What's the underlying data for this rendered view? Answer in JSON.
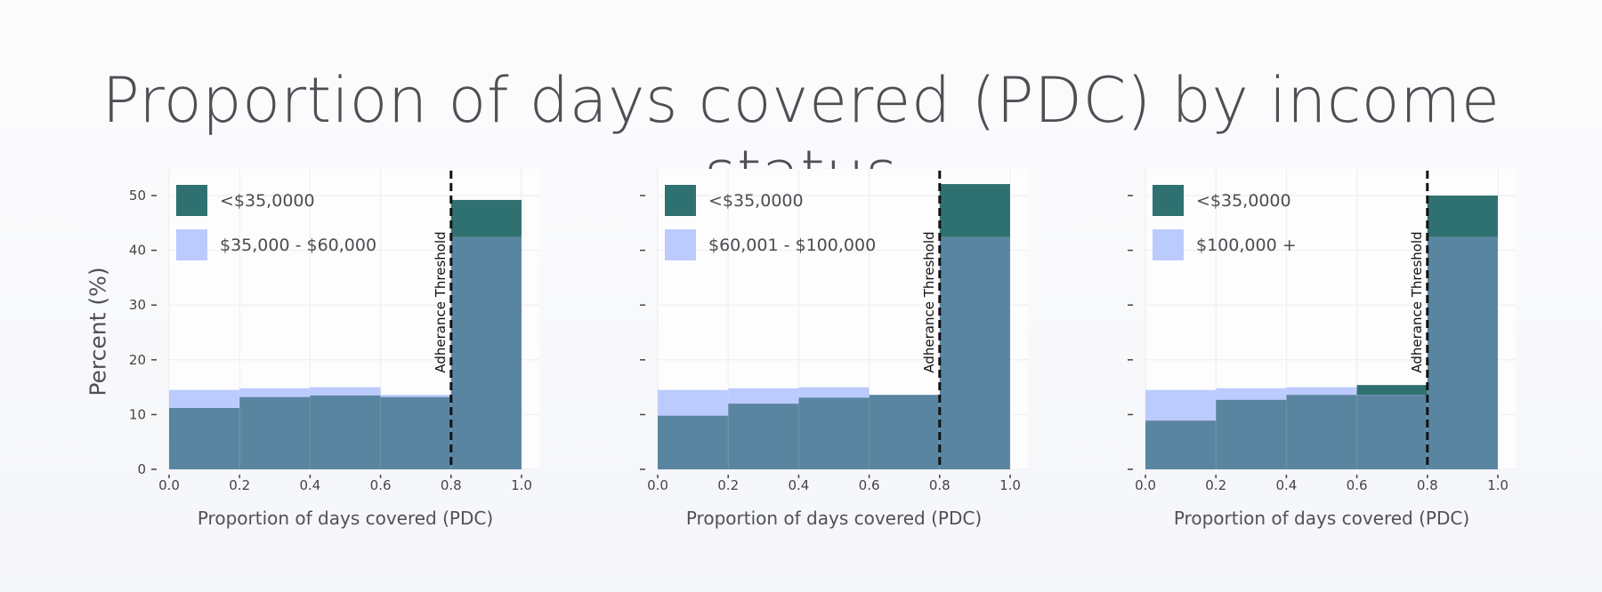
{
  "title": "Proportion of days covered (PDC) by income status",
  "ylabel": "Percent (%)",
  "colors": {
    "primary": "#2f7170",
    "primary_bar_opacity": "1",
    "comparison": "#bccbfd",
    "comparison_bar_opacity": "1",
    "overlap": "#5a85a1",
    "threshold": "#111111",
    "grid": "#ececf2"
  },
  "chart_data": [
    {
      "type": "bar",
      "name": "panel-1",
      "xlabel": "Proportion of days covered (PDC)",
      "ylabel": "Percent (%)",
      "xlim": [
        0,
        1
      ],
      "ylim": [
        0,
        55
      ],
      "xticks": [
        "0.0",
        "0.2",
        "0.4",
        "0.6",
        "0.8",
        "1.0"
      ],
      "yticks": [
        "0",
        "10",
        "20",
        "30",
        "40",
        "50"
      ],
      "show_ytick_labels": true,
      "bins": [
        [
          0,
          0.2
        ],
        [
          0.2,
          0.4
        ],
        [
          0.4,
          0.6
        ],
        [
          0.6,
          0.8
        ],
        [
          0.8,
          1.0
        ]
      ],
      "series": [
        {
          "name": "<$35,0000",
          "values": [
            11.2,
            13.2,
            13.5,
            13.2,
            49.2
          ]
        },
        {
          "name": "$35,000 - $60,000",
          "values": [
            14.5,
            14.8,
            15.0,
            13.6,
            42.4
          ]
        }
      ],
      "threshold": {
        "x": 0.8,
        "label": "Adherance Threshold"
      }
    },
    {
      "type": "bar",
      "name": "panel-2",
      "xlabel": "Proportion of days covered (PDC)",
      "ylabel": "",
      "xlim": [
        0,
        1
      ],
      "ylim": [
        0,
        55
      ],
      "xticks": [
        "0.0",
        "0.2",
        "0.4",
        "0.6",
        "0.8",
        "1.0"
      ],
      "yticks": [
        "0",
        "10",
        "20",
        "30",
        "40",
        "50"
      ],
      "show_ytick_labels": false,
      "bins": [
        [
          0,
          0.2
        ],
        [
          0.2,
          0.4
        ],
        [
          0.4,
          0.6
        ],
        [
          0.6,
          0.8
        ],
        [
          0.8,
          1.0
        ]
      ],
      "series": [
        {
          "name": "<$35,0000",
          "values": [
            9.8,
            12.0,
            13.1,
            13.6,
            52.1
          ]
        },
        {
          "name": "$60,001 - $100,000",
          "values": [
            14.5,
            14.8,
            15.0,
            13.6,
            42.4
          ]
        }
      ],
      "threshold": {
        "x": 0.8,
        "label": "Adherance Threshold"
      }
    },
    {
      "type": "bar",
      "name": "panel-3",
      "xlabel": "Proportion of days covered (PDC)",
      "ylabel": "",
      "xlim": [
        0,
        1
      ],
      "ylim": [
        0,
        55
      ],
      "xticks": [
        "0.0",
        "0.2",
        "0.4",
        "0.6",
        "0.8",
        "1.0"
      ],
      "yticks": [
        "0",
        "10",
        "20",
        "30",
        "40",
        "50"
      ],
      "show_ytick_labels": false,
      "bins": [
        [
          0,
          0.2
        ],
        [
          0.2,
          0.4
        ],
        [
          0.4,
          0.6
        ],
        [
          0.6,
          0.8
        ],
        [
          0.8,
          1.0
        ]
      ],
      "series": [
        {
          "name": "<$35,0000",
          "values": [
            8.9,
            12.7,
            13.6,
            15.4,
            50.0
          ]
        },
        {
          "name": "$100,000 +",
          "values": [
            14.5,
            14.8,
            15.0,
            13.6,
            42.4
          ]
        }
      ],
      "threshold": {
        "x": 0.8,
        "label": "Adherance Threshold"
      }
    }
  ]
}
